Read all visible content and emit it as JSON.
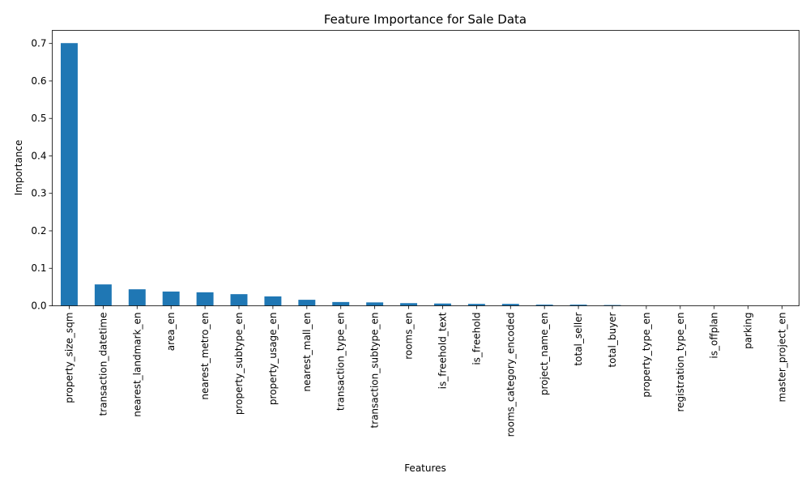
{
  "chart_data": {
    "type": "bar",
    "title": "Feature Importance for Sale Data",
    "xlabel": "Features",
    "ylabel": "Importance",
    "ylim": [
      0,
      0.735
    ],
    "yticks": [
      "0.0",
      "0.1",
      "0.2",
      "0.3",
      "0.4",
      "0.5",
      "0.6",
      "0.7"
    ],
    "grid": false,
    "bar_color": "#1f77b4",
    "categories": [
      "property_size_sqm",
      "transaction_datetime",
      "nearest_landmark_en",
      "area_en",
      "nearest_metro_en",
      "property_subtype_en",
      "property_usage_en",
      "nearest_mall_en",
      "transaction_type_en",
      "transaction_subtype_en",
      "rooms_en",
      "is_freehold_text",
      "is_freehold",
      "rooms_category_encoded",
      "project_name_en",
      "total_seller",
      "total_buyer",
      "property_type_en",
      "registration_type_en",
      "is_offplan",
      "parking",
      "master_project_en"
    ],
    "values": [
      0.701,
      0.057,
      0.044,
      0.038,
      0.036,
      0.031,
      0.025,
      0.016,
      0.01,
      0.009,
      0.007,
      0.006,
      0.005,
      0.005,
      0.003,
      0.003,
      0.002,
      0.0,
      0.0,
      0.0,
      0.0,
      0.0
    ]
  }
}
